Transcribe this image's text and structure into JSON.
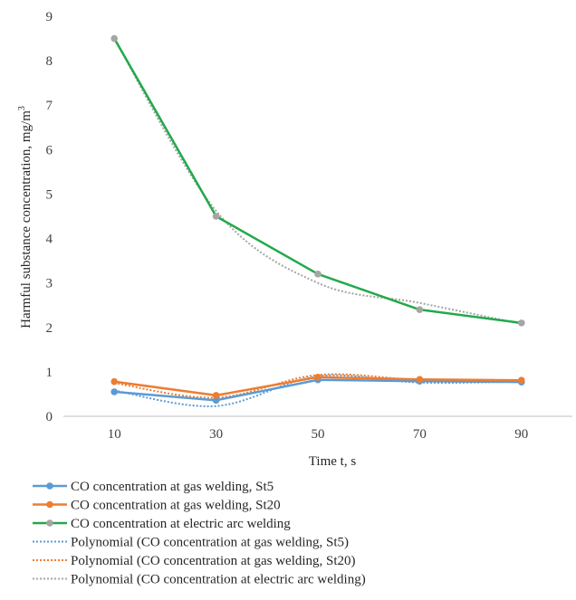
{
  "chart_data": {
    "type": "line",
    "xlabel": "Time t, s",
    "ylabel_main": "Harmful substance concentration, mg/m",
    "ylabel_sup": "3",
    "categories": [
      "10",
      "30",
      "50",
      "70",
      "90"
    ],
    "yticks": [
      "0",
      "1",
      "2",
      "3",
      "4",
      "5",
      "6",
      "7",
      "8",
      "9"
    ],
    "ylim": [
      0,
      9
    ],
    "grid": false,
    "legend_position": "bottom",
    "series": [
      {
        "name": "CO concentration at gas welding, St5",
        "color": "#5b9bd5",
        "values": [
          0.55,
          0.36,
          0.82,
          0.79,
          0.77
        ]
      },
      {
        "name": "CO concentration at gas welding, St20",
        "color": "#ed7d31",
        "values": [
          0.78,
          0.47,
          0.88,
          0.83,
          0.81
        ]
      },
      {
        "name": "CO concentration at electric arc welding",
        "color": "#22a94c",
        "marker_color": "#a5a5a5",
        "values": [
          8.5,
          4.5,
          3.2,
          2.4,
          2.1
        ]
      }
    ],
    "trendlines": [
      {
        "name": "Polynomial (CO concentration at gas welding, St5)",
        "color": "#5b9bd5",
        "values": [
          0.58,
          0.23,
          0.9,
          0.76,
          0.78
        ]
      },
      {
        "name": "Polynomial (CO concentration at gas welding, St20)",
        "color": "#ed7d31",
        "values": [
          0.75,
          0.42,
          0.93,
          0.82,
          0.8
        ]
      },
      {
        "name": "Polynomial (CO concentration at electric arc welding)",
        "color": "#a5a5a5",
        "values": [
          8.5,
          4.62,
          3.0,
          2.55,
          2.08
        ]
      }
    ]
  }
}
